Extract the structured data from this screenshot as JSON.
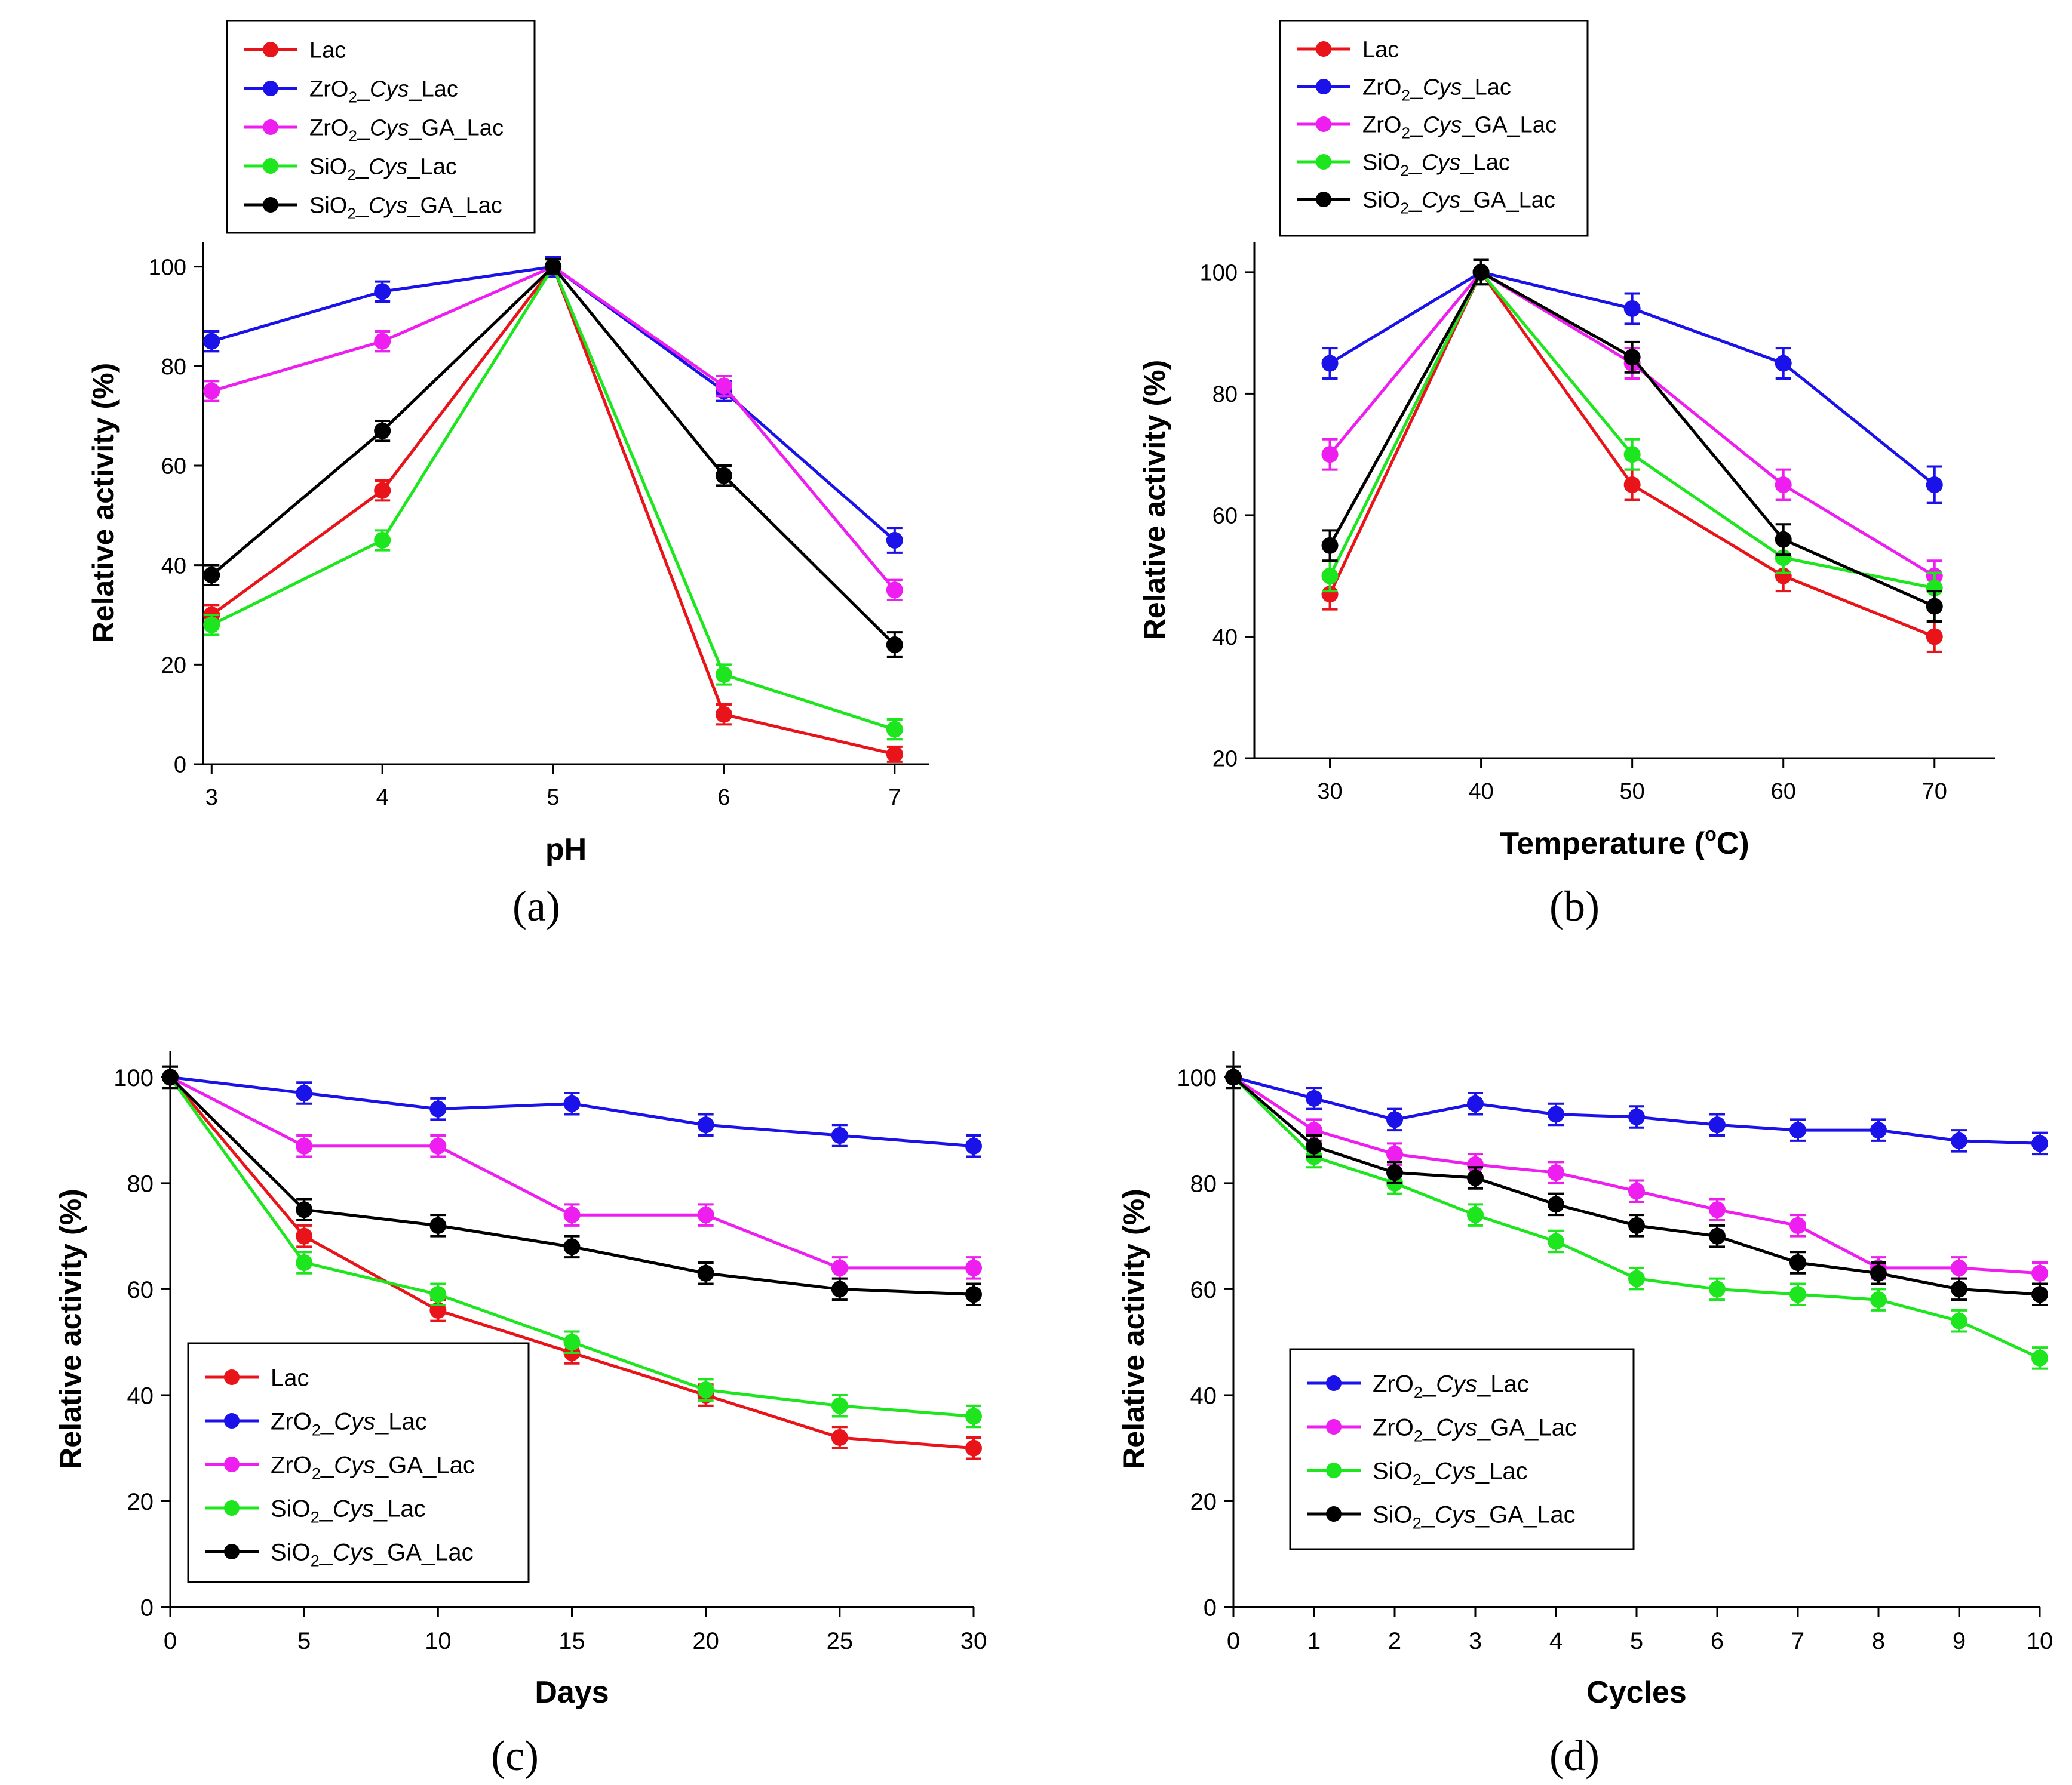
{
  "figure": {
    "panels": [
      {
        "id": "a",
        "caption": "(a)"
      },
      {
        "id": "b",
        "caption": "(b)"
      },
      {
        "id": "c",
        "caption": "(c)"
      },
      {
        "id": "d",
        "caption": "(d)"
      }
    ]
  },
  "series_colors": {
    "Lac": "#e8141a",
    "ZrO2_Cys_Lac": "#1a12e8",
    "ZrO2_Cys_GA_Lac": "#ee1ef0",
    "SiO2_Cys_Lac": "#1ee61e",
    "SiO2_Cys_GA_Lac": "#000000"
  },
  "legend_labels": {
    "Lac": "Lac",
    "ZrO2_Cys_Lac": "ZrO2_Cys_Lac",
    "ZrO2_Cys_GA_Lac": "ZrO2_Cys_GA_Lac",
    "SiO2_Cys_Lac": "SiO2_Cys_Lac",
    "SiO2_Cys_GA_Lac": "SiO2_Cys_GA_Lac"
  },
  "chart_data": [
    {
      "panel": "a",
      "type": "line",
      "xlabel": "pH",
      "ylabel": "Relative activity (%)",
      "x": [
        3,
        4,
        5,
        6,
        7
      ],
      "xlim": [
        2.95,
        7.2
      ],
      "ylim": [
        0,
        105
      ],
      "xticks": [
        3,
        4,
        5,
        6,
        7
      ],
      "yticks": [
        0,
        20,
        40,
        60,
        80,
        100
      ],
      "legend_position": "top-left, outside above plot",
      "series": [
        {
          "key": "Lac",
          "values": [
            30,
            55,
            100,
            10,
            2
          ],
          "errors": [
            2,
            2,
            1.5,
            2,
            1.5
          ]
        },
        {
          "key": "ZrO2_Cys_Lac",
          "values": [
            85,
            95,
            100,
            75,
            45
          ],
          "errors": [
            2,
            2,
            2,
            2,
            2.5
          ]
        },
        {
          "key": "ZrO2_Cys_GA_Lac",
          "values": [
            75,
            85,
            100,
            76,
            35
          ],
          "errors": [
            2,
            2,
            1.5,
            2,
            2
          ]
        },
        {
          "key": "SiO2_Cys_Lac",
          "values": [
            28,
            45,
            100,
            18,
            7
          ],
          "errors": [
            2,
            2,
            1.5,
            2,
            2
          ]
        },
        {
          "key": "SiO2_Cys_GA_Lac",
          "values": [
            38,
            67,
            100,
            58,
            24
          ],
          "errors": [
            2,
            2,
            1.5,
            2,
            2.5
          ]
        }
      ]
    },
    {
      "panel": "b",
      "type": "line",
      "xlabel": "Temperature (°C)",
      "ylabel": "Relative activity (%)",
      "x": [
        30,
        40,
        50,
        60,
        70
      ],
      "xlim": [
        25,
        74
      ],
      "ylim": [
        20,
        105
      ],
      "xticks": [
        30,
        40,
        50,
        60,
        70
      ],
      "yticks": [
        20,
        40,
        60,
        80,
        100
      ],
      "legend_position": "top-left, outside above plot",
      "series": [
        {
          "key": "Lac",
          "values": [
            47,
            100,
            65,
            50,
            40
          ],
          "errors": [
            2.5,
            2,
            2.5,
            2.5,
            2.5
          ]
        },
        {
          "key": "ZrO2_Cys_Lac",
          "values": [
            85,
            100,
            94,
            85,
            65
          ],
          "errors": [
            2.5,
            2,
            2.5,
            2.5,
            3
          ]
        },
        {
          "key": "ZrO2_Cys_GA_Lac",
          "values": [
            70,
            100,
            85,
            65,
            50
          ],
          "errors": [
            2.5,
            2,
            2.5,
            2.5,
            2.5
          ]
        },
        {
          "key": "SiO2_Cys_Lac",
          "values": [
            50,
            100,
            70,
            53,
            48
          ],
          "errors": [
            2.5,
            2,
            2.5,
            2.5,
            2.5
          ]
        },
        {
          "key": "SiO2_Cys_GA_Lac",
          "values": [
            55,
            100,
            86,
            56,
            45
          ],
          "errors": [
            2.5,
            2,
            2.5,
            2.5,
            2.5
          ]
        }
      ]
    },
    {
      "panel": "c",
      "type": "line",
      "xlabel": "Days",
      "ylabel": "Relative activity (%)",
      "x": [
        0,
        5,
        10,
        15,
        20,
        25,
        30
      ],
      "xlim": [
        0,
        30
      ],
      "ylim": [
        0,
        105
      ],
      "xticks": [
        0,
        5,
        10,
        15,
        20,
        25,
        30
      ],
      "yticks": [
        0,
        20,
        40,
        60,
        80,
        100
      ],
      "legend_position": "bottom-left, inside plot",
      "series": [
        {
          "key": "Lac",
          "values": [
            100,
            70,
            56,
            48,
            40,
            32,
            30
          ],
          "errors": [
            2,
            2,
            2,
            2,
            2,
            2,
            2
          ]
        },
        {
          "key": "ZrO2_Cys_Lac",
          "values": [
            100,
            97,
            94,
            95,
            91,
            89,
            87
          ],
          "errors": [
            2,
            2,
            2,
            2,
            2,
            2,
            2
          ]
        },
        {
          "key": "ZrO2_Cys_GA_Lac",
          "values": [
            100,
            87,
            87,
            74,
            74,
            64,
            64
          ],
          "errors": [
            2,
            2,
            2,
            2,
            2,
            2,
            2
          ]
        },
        {
          "key": "SiO2_Cys_Lac",
          "values": [
            100,
            65,
            59,
            50,
            41,
            38,
            36
          ],
          "errors": [
            2,
            2,
            2,
            2,
            2,
            2,
            2
          ]
        },
        {
          "key": "SiO2_Cys_GA_Lac",
          "values": [
            100,
            75,
            72,
            68,
            63,
            60,
            59
          ],
          "errors": [
            2,
            2,
            2,
            2,
            2,
            2,
            2
          ]
        }
      ]
    },
    {
      "panel": "d",
      "type": "line",
      "xlabel": "Cycles",
      "ylabel": "Relative activity (%)",
      "x": [
        0,
        1,
        2,
        3,
        4,
        5,
        6,
        7,
        8,
        9,
        10
      ],
      "xlim": [
        0,
        10
      ],
      "ylim": [
        0,
        105
      ],
      "xticks": [
        0,
        1,
        2,
        3,
        4,
        5,
        6,
        7,
        8,
        9,
        10
      ],
      "yticks": [
        0,
        20,
        40,
        60,
        80,
        100
      ],
      "legend_position": "bottom-left, inside plot",
      "series": [
        {
          "key": "ZrO2_Cys_Lac",
          "values": [
            100,
            96,
            92,
            95,
            93,
            92.5,
            91,
            90,
            90,
            88,
            87.5
          ],
          "errors": [
            2,
            2,
            2,
            2,
            2,
            2,
            2,
            2,
            2,
            2,
            2
          ]
        },
        {
          "key": "ZrO2_Cys_GA_Lac",
          "values": [
            100,
            90,
            85.5,
            83.5,
            82,
            78.5,
            75,
            72,
            64,
            64,
            63
          ],
          "errors": [
            2,
            2,
            2,
            2,
            2,
            2,
            2,
            2,
            2,
            2,
            2
          ]
        },
        {
          "key": "SiO2_Cys_Lac",
          "values": [
            100,
            85,
            80,
            74,
            69,
            62,
            60,
            59,
            58,
            54,
            47
          ],
          "errors": [
            2,
            2,
            2,
            2,
            2,
            2,
            2,
            2,
            2,
            2,
            2
          ]
        },
        {
          "key": "SiO2_Cys_GA_Lac",
          "values": [
            100,
            87,
            82,
            81,
            76,
            72,
            70,
            65,
            63,
            60,
            59
          ],
          "errors": [
            2,
            2,
            2,
            2,
            2,
            2,
            2,
            2,
            2,
            2,
            2
          ]
        }
      ]
    }
  ]
}
